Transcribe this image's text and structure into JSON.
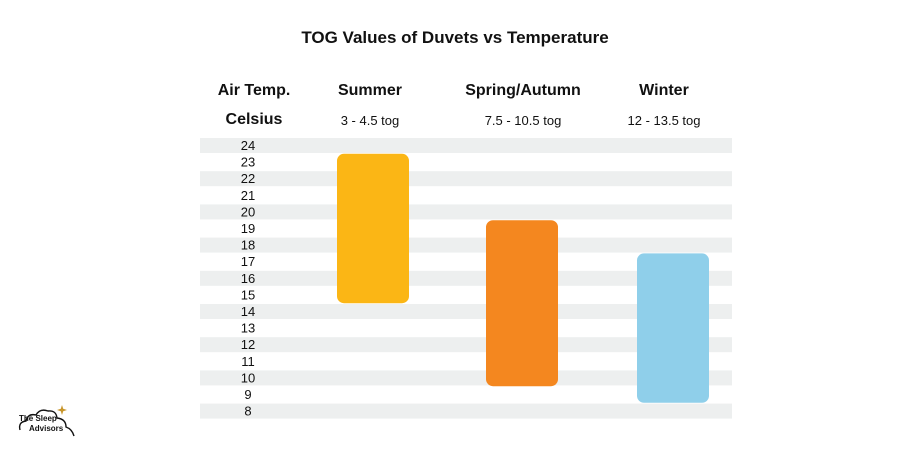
{
  "chart_data": {
    "type": "bar",
    "title": "TOG Values of Duvets vs Temperature",
    "ylabel_line1": "Air Temp.",
    "ylabel_line2": "Celsius",
    "yticks": [
      24,
      23,
      22,
      21,
      20,
      19,
      18,
      17,
      16,
      15,
      14,
      13,
      12,
      11,
      10,
      9,
      8
    ],
    "grid": "alternating horizontal bands",
    "series": [
      {
        "name": "Summer",
        "tog": "3 - 4.5 tog",
        "temp_range": [
          14.5,
          23.5
        ],
        "color": "#FBB615"
      },
      {
        "name": "Spring/Autumn",
        "tog": "7.5 - 10.5 tog",
        "temp_range": [
          9.5,
          19.5
        ],
        "color": "#F4871F"
      },
      {
        "name": "Winter",
        "tog": "12 - 13.5 tog",
        "temp_range": [
          8.5,
          17.5
        ],
        "color": "#8FCFEA"
      }
    ]
  },
  "brand": {
    "name_line1": "The Sleep",
    "name_line2": "Advisors",
    "accent_color": "#C8962C"
  }
}
